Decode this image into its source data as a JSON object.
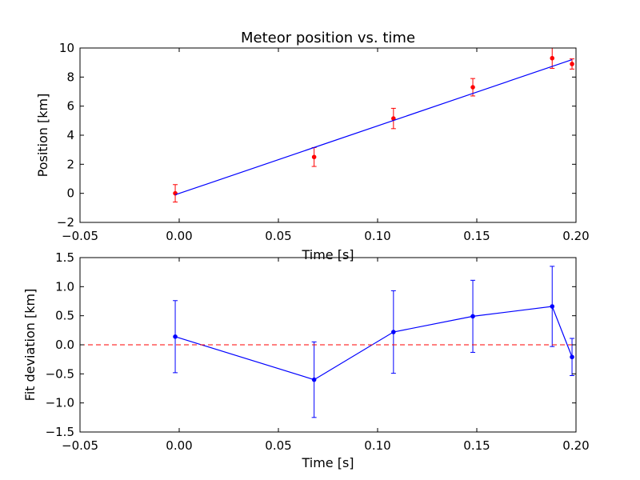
{
  "chart_data": [
    {
      "type": "scatter",
      "title": "Meteor position vs. time",
      "xlabel": "Time [s]",
      "ylabel": "Position [km]",
      "xlim": [
        -0.05,
        0.2
      ],
      "ylim": [
        -2,
        10
      ],
      "xticks": [
        -0.05,
        0.0,
        0.05,
        0.1,
        0.15,
        0.2
      ],
      "yticks": [
        -2,
        0,
        2,
        4,
        6,
        8,
        10
      ],
      "xtick_labels": [
        "−0.05",
        "0.00",
        "0.05",
        "0.10",
        "0.15",
        "0.20"
      ],
      "ytick_labels": [
        "−2",
        "0",
        "2",
        "4",
        "6",
        "8",
        "10"
      ],
      "grid": false,
      "series": [
        {
          "kind": "errorbar-points",
          "color": "#ff0000",
          "x": [
            -0.002,
            0.068,
            0.108,
            0.148,
            0.188,
            0.198
          ],
          "y": [
            0.0,
            2.5,
            5.15,
            7.3,
            9.3,
            8.9
          ],
          "yerr": [
            0.6,
            0.65,
            0.7,
            0.6,
            0.7,
            0.35
          ]
        },
        {
          "kind": "fit-line",
          "color": "#0000ff",
          "x": [
            -0.002,
            0.198
          ],
          "y": [
            -0.1,
            9.2
          ]
        }
      ]
    },
    {
      "type": "line",
      "title": "",
      "xlabel": "Time [s]",
      "ylabel": "Fit deviation [km]",
      "xlim": [
        -0.05,
        0.2
      ],
      "ylim": [
        -1.5,
        1.5
      ],
      "xticks": [
        -0.05,
        0.0,
        0.05,
        0.1,
        0.15,
        0.2
      ],
      "yticks": [
        -1.5,
        -1.0,
        -0.5,
        0.0,
        0.5,
        1.0,
        1.5
      ],
      "xtick_labels": [
        "−0.05",
        "0.00",
        "0.05",
        "0.10",
        "0.15",
        "0.20"
      ],
      "ytick_labels": [
        "−1.5",
        "−1.0",
        "−0.5",
        "0.0",
        "0.5",
        "1.0",
        "1.5"
      ],
      "grid": false,
      "series": [
        {
          "kind": "errorbar-line",
          "color": "#0000ff",
          "x": [
            -0.002,
            0.068,
            0.108,
            0.148,
            0.188,
            0.198
          ],
          "y": [
            0.14,
            -0.6,
            0.22,
            0.49,
            0.66,
            -0.21
          ],
          "yerr": [
            0.62,
            0.65,
            0.71,
            0.62,
            0.69,
            0.32
          ]
        },
        {
          "kind": "reference-line",
          "color": "#ff0000",
          "dashed": true,
          "y": 0.0
        }
      ]
    }
  ]
}
